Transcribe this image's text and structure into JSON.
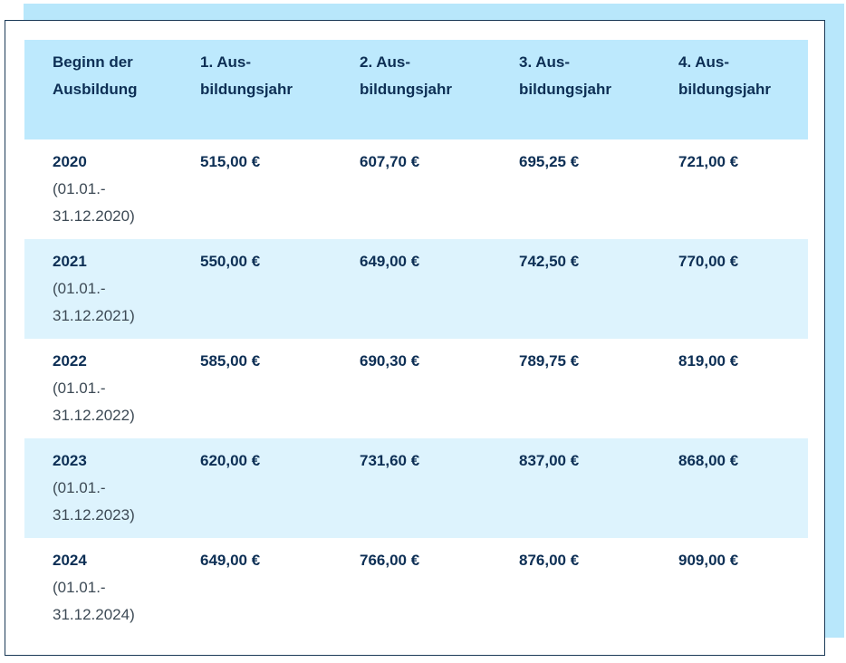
{
  "colors": {
    "header_bg": "#bde9fd",
    "alt_row_bg": "#ddf3fd",
    "backdrop": "#b8e7fb",
    "text_primary": "#0d2f55",
    "text_secondary": "#3d4a55",
    "border": "#1b3a57"
  },
  "table": {
    "headers": {
      "start_line1": "Beginn der",
      "start_line2": "Ausbildung",
      "y1_line1": "1. Aus-",
      "y1_line2": "bildungsjahr",
      "y2_line1": "2. Aus-",
      "y2_line2": "bildungsjahr",
      "y3_line1": "3. Aus-",
      "y3_line2": "bildungsjahr",
      "y4_line1": "4. Aus-",
      "y4_line2": "bildungsjahr"
    },
    "rows": [
      {
        "year": "2020",
        "range_line1": "(01.01.-",
        "range_line2": "31.12.2020)",
        "y1": "515,00 €",
        "y2": "607,70 €",
        "y3": "695,25 €",
        "y4": "721,00 €"
      },
      {
        "year": "2021",
        "range_line1": "(01.01.-",
        "range_line2": "31.12.2021)",
        "y1": "550,00 €",
        "y2": "649,00 €",
        "y3": "742,50 €",
        "y4": "770,00 €"
      },
      {
        "year": "2022",
        "range_line1": "(01.01.-",
        "range_line2": "31.12.2022)",
        "y1": "585,00 €",
        "y2": "690,30 €",
        "y3": "789,75 €",
        "y4": "819,00 €"
      },
      {
        "year": "2023",
        "range_line1": "(01.01.-",
        "range_line2": "31.12.2023)",
        "y1": "620,00 €",
        "y2": "731,60 €",
        "y3": "837,00 €",
        "y4": "868,00 €"
      },
      {
        "year": "2024",
        "range_line1": "(01.01.-",
        "range_line2": "31.12.2024)",
        "y1": "649,00 €",
        "y2": "766,00 €",
        "y3": "876,00 €",
        "y4": "909,00 €"
      }
    ]
  }
}
